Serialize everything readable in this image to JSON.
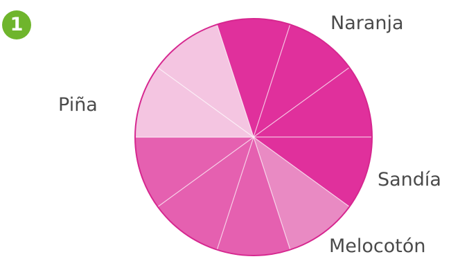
{
  "badge": {
    "text": "1",
    "color": "#6fb52c"
  },
  "chart_data": {
    "type": "pie",
    "title": "",
    "total_sectors": 10,
    "categories": [
      "Naranja",
      "Sandía",
      "Melocotón",
      "Piña"
    ],
    "values": [
      4,
      1,
      3,
      2
    ],
    "fractions": [
      "4/10",
      "1/10",
      "3/10",
      "2/10"
    ],
    "colors": [
      "#e0309c",
      "#e98ac3",
      "#e560b0",
      "#f4c5e1"
    ]
  }
}
